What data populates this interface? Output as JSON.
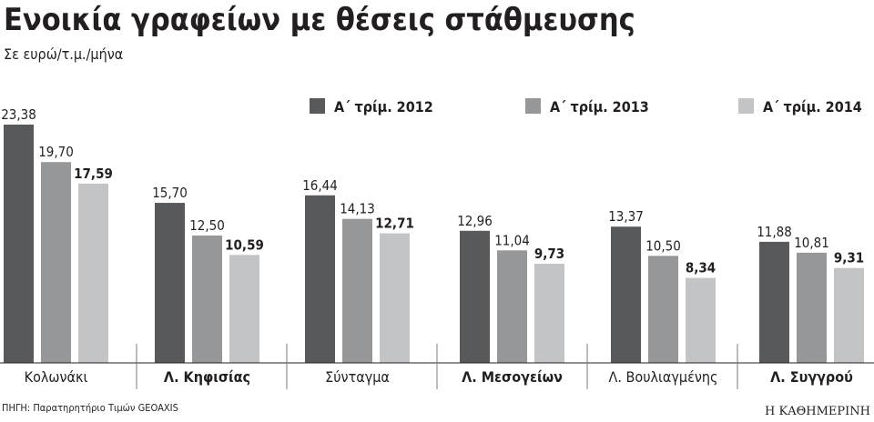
{
  "chart_data": {
    "type": "bar",
    "title": "Ενοικία γραφείων με θέσεις στάθμευσης",
    "subtitle": "Σε ευρώ/τ.μ./μήνα",
    "source": "ΠΗΓΗ: Παρατηρητήριο Τιμών GEOAXIS",
    "brand": "Η ΚΑΘΗΜΕΡΙΝΗ",
    "categories": [
      "Κολωνάκι",
      "Λ. Κηφισίας",
      "Σύνταγμα",
      "Λ. Μεσογείων",
      "Λ. Βουλιαγμένης",
      "Λ. Συγγρού"
    ],
    "category_bold": [
      false,
      true,
      false,
      true,
      false,
      true
    ],
    "series": [
      {
        "name": "Α΄ τρίμ. 2012",
        "values": [
          23.38,
          15.7,
          16.44,
          12.96,
          13.37,
          11.88
        ],
        "labels": [
          "23,38",
          "15,70",
          "16,44",
          "12,96",
          "13,37",
          "11,88"
        ],
        "color": "#58595b"
      },
      {
        "name": "Α΄ τρίμ. 2013",
        "values": [
          19.7,
          12.5,
          14.13,
          11.04,
          10.5,
          10.81
        ],
        "labels": [
          "19,70",
          "12,50",
          "14,13",
          "11,04",
          "10,50",
          "10,81"
        ],
        "color": "#969799"
      },
      {
        "name": "Α΄ τρίμ. 2014",
        "values": [
          17.59,
          10.59,
          12.71,
          9.73,
          8.34,
          9.31
        ],
        "labels": [
          "17,59",
          "10,59",
          "12,71",
          "9,73",
          "8,34",
          "9,31"
        ],
        "color": "#c3c4c6",
        "bold_labels": true
      }
    ],
    "ylim": [
      0,
      23.38
    ],
    "grid": false,
    "legend": "top"
  }
}
